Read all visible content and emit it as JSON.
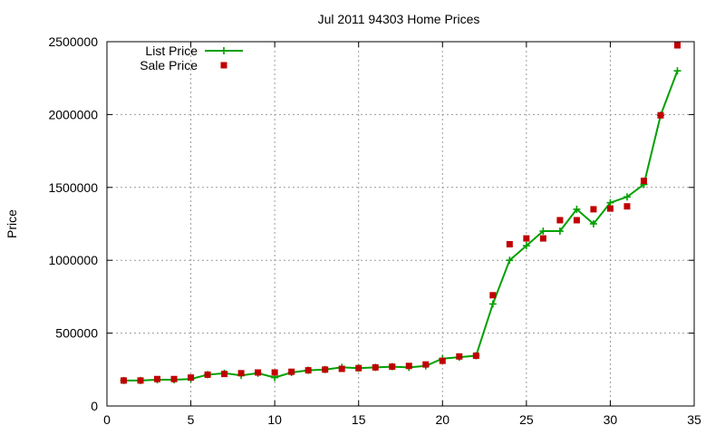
{
  "chart_data": {
    "type": "line",
    "title": "Jul 2011 94303 Home Prices",
    "xlabel": "",
    "ylabel": "Price",
    "xlim": [
      0,
      35
    ],
    "ylim": [
      0,
      2500000
    ],
    "x_ticks": [
      0,
      5,
      10,
      15,
      20,
      25,
      30,
      35
    ],
    "y_ticks": [
      0,
      500000,
      1000000,
      1500000,
      2000000,
      2500000
    ],
    "x_tick_labels": [
      "0",
      "5",
      "10",
      "15",
      "20",
      "25",
      "30",
      "35"
    ],
    "y_tick_labels": [
      "0",
      "500000",
      "1000000",
      "1500000",
      "2000000",
      "2500000"
    ],
    "grid": true,
    "legend_position": "top-left",
    "series": [
      {
        "name": "List Price",
        "style": "line+plus-markers",
        "color": "#00a000",
        "x": [
          1,
          2,
          3,
          4,
          5,
          6,
          7,
          8,
          9,
          10,
          11,
          12,
          13,
          14,
          15,
          16,
          17,
          18,
          19,
          20,
          21,
          22,
          23,
          24,
          25,
          26,
          27,
          28,
          29,
          30,
          31,
          32,
          33,
          34
        ],
        "values": [
          175000,
          175000,
          180000,
          180000,
          185000,
          215000,
          225000,
          210000,
          225000,
          195000,
          230000,
          245000,
          250000,
          265000,
          260000,
          265000,
          270000,
          265000,
          275000,
          325000,
          335000,
          345000,
          700000,
          1000000,
          1100000,
          1200000,
          1200000,
          1350000,
          1250000,
          1395000,
          1435000,
          1520000,
          1995000,
          2300000
        ]
      },
      {
        "name": "Sale Price",
        "style": "square-markers",
        "color": "#c00000",
        "x": [
          1,
          2,
          3,
          4,
          5,
          6,
          7,
          8,
          9,
          10,
          11,
          12,
          13,
          14,
          15,
          16,
          17,
          18,
          19,
          20,
          21,
          22,
          23,
          24,
          25,
          26,
          27,
          28,
          29,
          30,
          31,
          32,
          33,
          34
        ],
        "values": [
          175000,
          175000,
          185000,
          185000,
          195000,
          215000,
          220000,
          225000,
          230000,
          230000,
          235000,
          245000,
          250000,
          255000,
          260000,
          265000,
          270000,
          275000,
          285000,
          310000,
          340000,
          345000,
          760000,
          1110000,
          1150000,
          1150000,
          1275000,
          1275000,
          1350000,
          1355000,
          1370000,
          1545000,
          1995000,
          2475000
        ]
      }
    ]
  }
}
